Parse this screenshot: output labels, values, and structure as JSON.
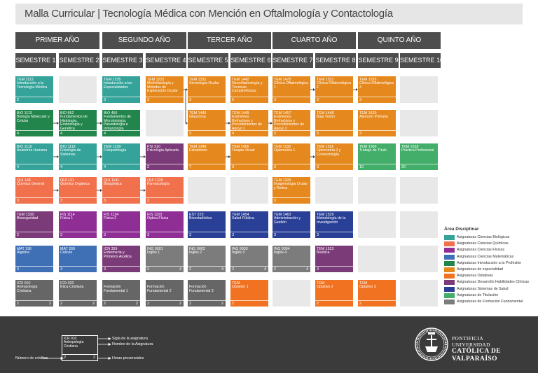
{
  "title": "Malla Curricular | Tecnología Médica con Mención en Oftalmología y Contactología",
  "colors": {
    "teal": "#36a39b",
    "green": "#22854b",
    "blue": "#3f6fb4",
    "salmon": "#f0714b",
    "purple": "#7b3b78",
    "magenta": "#8f2f95",
    "orange": "#e5891e",
    "lightorange": "#f17221",
    "gray": "#7c7c7c",
    "navy": "#2a3f96",
    "lightgreen": "#43ae6a",
    "darkgray": "#666666",
    "header": "#4d4d4d",
    "empty": "#e8e8e8",
    "footer": "#3b3b3b"
  },
  "years": [
    "PRIMER AÑO",
    "SEGUNDO AÑO",
    "TERCER AÑO",
    "CUARTO AÑO",
    "QUINTO AÑO"
  ],
  "semesters": [
    "SEMESTRE 1",
    "SEMESTRE 2",
    "SEMESTRE 3",
    "SEMESTRE 4",
    "SEMESTRE 5",
    "SEMESTRE 6",
    "SEMESTRE 7",
    "SEMESTRE 8",
    "SEMESTRE 9",
    "SEMESTRE 10"
  ],
  "courses": [
    {
      "sem": 1,
      "row": 1,
      "code": "TEM 1112",
      "name": "Introducción a la Tecnología Médica",
      "credits": "2",
      "hours": "",
      "color": "teal"
    },
    {
      "sem": 3,
      "row": 1,
      "code": "TEM 1235",
      "name": "Introducción a las Especialidades",
      "credits": "3",
      "hours": "",
      "color": "teal"
    },
    {
      "sem": 4,
      "row": 1,
      "code": "TEM 1222",
      "name": "Morfofisiología y Métodos de Exploración Ocular",
      "credits": "3",
      "hours": "",
      "color": "orange"
    },
    {
      "sem": 5,
      "row": 1,
      "code": "TEM 1331",
      "name": "Semiología Ocular",
      "credits": "3",
      "hours": "",
      "color": "orange"
    },
    {
      "sem": 6,
      "row": 1,
      "code": "TEM 1442",
      "name": "Neuroftalmología y Técnicas Campimétricas",
      "credits": "6",
      "hours": "",
      "color": "orange"
    },
    {
      "sem": 7,
      "row": 1,
      "code": "TEM 1470",
      "name": "Clínica Oftalmológica 1",
      "credits": "3",
      "hours": "",
      "color": "orange"
    },
    {
      "sem": 8,
      "row": 1,
      "code": "TEM 1521",
      "name": "Clínica Oftalmológica 2",
      "credits": "3",
      "hours": "",
      "color": "orange"
    },
    {
      "sem": 9,
      "row": 1,
      "code": "TEM 1535",
      "name": "Clínica Oftalmológica 3",
      "credits": "3",
      "hours": "",
      "color": "orange"
    },
    {
      "sem": 1,
      "row": 2,
      "code": "BIO 1113",
      "name": "Biología Molecular y Celular",
      "credits": "4",
      "hours": "",
      "color": "green"
    },
    {
      "sem": 2,
      "row": 2,
      "code": "BIO 652",
      "name": "Fundamentos de Histología, Embriología y Genética",
      "credits": "4",
      "hours": "",
      "color": "green"
    },
    {
      "sem": 3,
      "row": 2,
      "code": "BIO 456",
      "name": "Fundamentos de Microbiología, Parasitología e Inmunología",
      "credits": "4",
      "hours": "",
      "color": "green"
    },
    {
      "sem": 5,
      "row": 2,
      "code": "TEM 1445",
      "name": "Glaucoma",
      "credits": "3",
      "hours": "",
      "color": "orange"
    },
    {
      "sem": 6,
      "row": 2,
      "code": "TEM 1449",
      "name": "Exámenes Refractivos y Procedimientos de Apoyo 1",
      "credits": "4",
      "hours": "",
      "color": "orange"
    },
    {
      "sem": 7,
      "row": 2,
      "code": "TEM 1457",
      "name": "Exámenes Refractivos y Procedimientos de Apoyo 2",
      "credits": "3",
      "hours": "",
      "color": "orange"
    },
    {
      "sem": 8,
      "row": 2,
      "code": "TEM 1448",
      "name": "Baja Visión",
      "credits": "3",
      "hours": "",
      "color": "orange"
    },
    {
      "sem": 9,
      "row": 2,
      "code": "TEM 1520",
      "name": "Atención Primaria",
      "credits": "3",
      "hours": "",
      "color": "orange"
    },
    {
      "sem": 1,
      "row": 3,
      "code": "BIO 1115",
      "name": "Anatomía Humana",
      "credits": "4",
      "hours": "",
      "color": "teal"
    },
    {
      "sem": 2,
      "row": 3,
      "code": "BIO 1119",
      "name": "Fisiología de Sistemas",
      "credits": "4",
      "hours": "",
      "color": "teal"
    },
    {
      "sem": 3,
      "row": 3,
      "code": "TEM 1239",
      "name": "Fisiopatología",
      "credits": "4",
      "hours": "",
      "color": "teal"
    },
    {
      "sem": 4,
      "row": 3,
      "code": "PSI 310",
      "name": "Psicología Aplicada",
      "credits": "2",
      "hours": "",
      "color": "purple"
    },
    {
      "sem": 5,
      "row": 3,
      "code": "TEM 1349",
      "name": "Estrabismo",
      "credits": "7",
      "hours": "",
      "color": "orange"
    },
    {
      "sem": 6,
      "row": 3,
      "code": "TEM 1456",
      "name": "Terapia Visual",
      "credits": "3",
      "hours": "",
      "color": "orange"
    },
    {
      "sem": 7,
      "row": 3,
      "code": "TEM 1232",
      "name": "Optometría 1",
      "credits": "3",
      "hours": "",
      "color": "orange"
    },
    {
      "sem": 8,
      "row": 3,
      "code": "TEM 1526",
      "name": "Optometría 2 y Contactología",
      "credits": "3",
      "hours": "",
      "color": "orange"
    },
    {
      "sem": 9,
      "row": 3,
      "code": "TEM 1500",
      "name": "Trabajo de Título",
      "credits": "10",
      "hours": "",
      "color": "lightgreen"
    },
    {
      "sem": 10,
      "row": 3,
      "code": "TEM 1528",
      "name": "Práctica Profesional",
      "credits": "20",
      "hours": "",
      "color": "lightgreen"
    },
    {
      "sem": 1,
      "row": 4,
      "code": "QUI 148",
      "name": "Química General",
      "credits": "3",
      "hours": "",
      "color": "salmon"
    },
    {
      "sem": 2,
      "row": 4,
      "code": "QUI 131",
      "name": "Química Orgánica",
      "credits": "3",
      "hours": "",
      "color": "salmon"
    },
    {
      "sem": 3,
      "row": 4,
      "code": "QUI 1141",
      "name": "Bioquímica",
      "credits": "3",
      "hours": "",
      "color": "salmon"
    },
    {
      "sem": 4,
      "row": 4,
      "code": "QUI 1220",
      "name": "Farmacología",
      "credits": "3",
      "hours": "",
      "color": "salmon"
    },
    {
      "sem": 7,
      "row": 4,
      "code": "TEM 1329",
      "name": "Imagenología Ocular y Retina",
      "credits": "3",
      "hours": "",
      "color": "orange"
    },
    {
      "sem": 1,
      "row": 5,
      "code": "TEM 1330",
      "name": "Bioseguridad",
      "credits": "2",
      "hours": "",
      "color": "purple"
    },
    {
      "sem": 2,
      "row": 5,
      "code": "FIS 1114",
      "name": "Física 1",
      "credits": "3",
      "hours": "",
      "color": "magenta"
    },
    {
      "sem": 3,
      "row": 5,
      "code": "FIS 1124",
      "name": "Física 2",
      "credits": "3",
      "hours": "",
      "color": "magenta"
    },
    {
      "sem": 4,
      "row": 5,
      "code": "FIS 1223",
      "name": "Óptica Física",
      "credits": "3",
      "hours": "",
      "color": "magenta"
    },
    {
      "sem": 5,
      "row": 5,
      "code": "EST 223",
      "name": "Bioestadística",
      "credits": "3",
      "hours": "",
      "color": "navy"
    },
    {
      "sem": 6,
      "row": 5,
      "code": "TEM 1454",
      "name": "Salud Pública",
      "credits": "3",
      "hours": "",
      "color": "navy"
    },
    {
      "sem": 7,
      "row": 5,
      "code": "TEM 1463",
      "name": "Administración y Gestión",
      "credits": "3",
      "hours": "",
      "color": "navy"
    },
    {
      "sem": 8,
      "row": 5,
      "code": "TEM 1529",
      "name": "Metodología de la Investigación",
      "credits": "3",
      "hours": "",
      "color": "navy"
    },
    {
      "sem": 1,
      "row": 6,
      "code": "MAT 196",
      "name": "Álgebra",
      "credits": "3",
      "hours": "",
      "color": "blue"
    },
    {
      "sem": 2,
      "row": 6,
      "code": "MAT 269",
      "name": "Cálculo",
      "credits": "3",
      "hours": "",
      "color": "blue"
    },
    {
      "sem": 3,
      "row": 6,
      "code": "ICN 359",
      "name": "Enfermería y Primeros Auxilios",
      "credits": "3",
      "hours": "",
      "color": "purple"
    },
    {
      "sem": 4,
      "row": 6,
      "code": "ING 9001",
      "name": "Inglés 1",
      "credits": "2",
      "hours": "4",
      "color": "gray"
    },
    {
      "sem": 5,
      "row": 6,
      "code": "ING 9002",
      "name": "Inglés 2",
      "credits": "2",
      "hours": "4",
      "color": "gray"
    },
    {
      "sem": 6,
      "row": 6,
      "code": "ING 9003",
      "name": "Inglés 3",
      "credits": "2",
      "hours": "4",
      "color": "gray"
    },
    {
      "sem": 7,
      "row": 6,
      "code": "ING 9004",
      "name": "Inglés 4",
      "credits": "2",
      "hours": "4",
      "color": "gray"
    },
    {
      "sem": 8,
      "row": 6,
      "code": "TEM 1523",
      "name": "Bioética",
      "credits": "3",
      "hours": "",
      "color": "purple"
    },
    {
      "sem": 1,
      "row": 7,
      "code": "ICR 010",
      "name": "Antropología Cristiana",
      "credits": "2",
      "hours": "2",
      "color": "darkgray"
    },
    {
      "sem": 2,
      "row": 7,
      "code": "ICR 020",
      "name": "Ética Cristiana",
      "credits": "2",
      "hours": "2",
      "color": "darkgray"
    },
    {
      "sem": 3,
      "row": 7,
      "code": "",
      "name": "Formación Fundamental 1",
      "credits": "2",
      "hours": "2",
      "color": "darkgray"
    },
    {
      "sem": 4,
      "row": 7,
      "code": "",
      "name": "Formación Fundamental 2",
      "credits": "2",
      "hours": "2",
      "color": "darkgray"
    },
    {
      "sem": 5,
      "row": 7,
      "code": "",
      "name": "Formación Fundamental 3",
      "credits": "2",
      "hours": "2",
      "color": "darkgray"
    },
    {
      "sem": 6,
      "row": 7,
      "code": "TEM",
      "name": "Optativo 1",
      "credits": "2",
      "hours": "",
      "color": "lightorange"
    },
    {
      "sem": 8,
      "row": 7,
      "code": "TEM",
      "name": "Optativo 2",
      "credits": "2",
      "hours": "",
      "color": "lightorange"
    },
    {
      "sem": 9,
      "row": 7,
      "code": "TEM",
      "name": "Optativo 3",
      "credits": "2",
      "hours": "",
      "color": "lightorange"
    }
  ],
  "connectors": [
    {
      "from": [
        1,
        3
      ],
      "to": [
        2,
        3
      ]
    },
    {
      "from": [
        2,
        3
      ],
      "to": [
        3,
        3
      ]
    },
    {
      "from": [
        3,
        3
      ],
      "to": [
        4,
        3
      ]
    },
    {
      "from": [
        1,
        2
      ],
      "to": [
        2,
        2
      ]
    },
    {
      "from": [
        2,
        2
      ],
      "to": [
        3,
        2
      ]
    },
    {
      "from": [
        1,
        4
      ],
      "to": [
        2,
        4
      ]
    },
    {
      "from": [
        2,
        4
      ],
      "to": [
        3,
        4
      ]
    },
    {
      "from": [
        3,
        4
      ],
      "to": [
        4,
        4
      ]
    },
    {
      "from": [
        5,
        3
      ],
      "to": [
        6,
        3
      ]
    },
    {
      "from": [
        7,
        3
      ],
      "to": [
        8,
        3
      ]
    },
    {
      "from": [
        4,
        1
      ],
      "to": [
        5,
        1
      ]
    },
    {
      "from": [
        4,
        1
      ],
      "to": [
        5,
        2
      ]
    },
    {
      "from": [
        5,
        2
      ],
      "to": [
        6,
        2
      ]
    },
    {
      "from": [
        6,
        2
      ],
      "to": [
        7,
        2
      ]
    },
    {
      "from": [
        7,
        1
      ],
      "to": [
        8,
        1
      ]
    },
    {
      "from": [
        8,
        1
      ],
      "to": [
        9,
        1
      ]
    }
  ],
  "legend": {
    "title": "Área Disciplinar",
    "items": [
      {
        "label": "Asignaturas Ciencias Biológicas",
        "color": "teal"
      },
      {
        "label": "Asignaturas Ciencias Químicas",
        "color": "salmon"
      },
      {
        "label": "Asignaturas Ciencias Físicas",
        "color": "magenta"
      },
      {
        "label": "Asignaturas Ciencias Matemáticas",
        "color": "blue"
      },
      {
        "label": "Asignaturas Introducción a la Profesión",
        "color": "green"
      },
      {
        "label": "Asignaturas de especialidad",
        "color": "orange"
      },
      {
        "label": "Asignaturas Optativas",
        "color": "lightorange"
      },
      {
        "label": "Asignaturas Desarrollo Habilidades Clínicas",
        "color": "purple"
      },
      {
        "label": "Asignaturas Sistemas de Salud",
        "color": "navy"
      },
      {
        "label": "Asignaturas de Titulación",
        "color": "lightgreen"
      },
      {
        "label": "Asignaturas de Formación Fundamental",
        "color": "gray"
      }
    ]
  },
  "footer": {
    "example": {
      "code": "ICR 010",
      "name": "Antropología Cristiana",
      "credits": "2",
      "hours": "2"
    },
    "label_code": "Sigla de la asignatura",
    "label_name": "Nombre de la Asignatura",
    "label_credits": "Número de créditos",
    "label_hours": "Horas presenciales",
    "university": [
      "PONTIFICIA",
      "UNIVERSIDAD",
      "CATÓLICA DE",
      "VALPARAÍSO"
    ]
  }
}
